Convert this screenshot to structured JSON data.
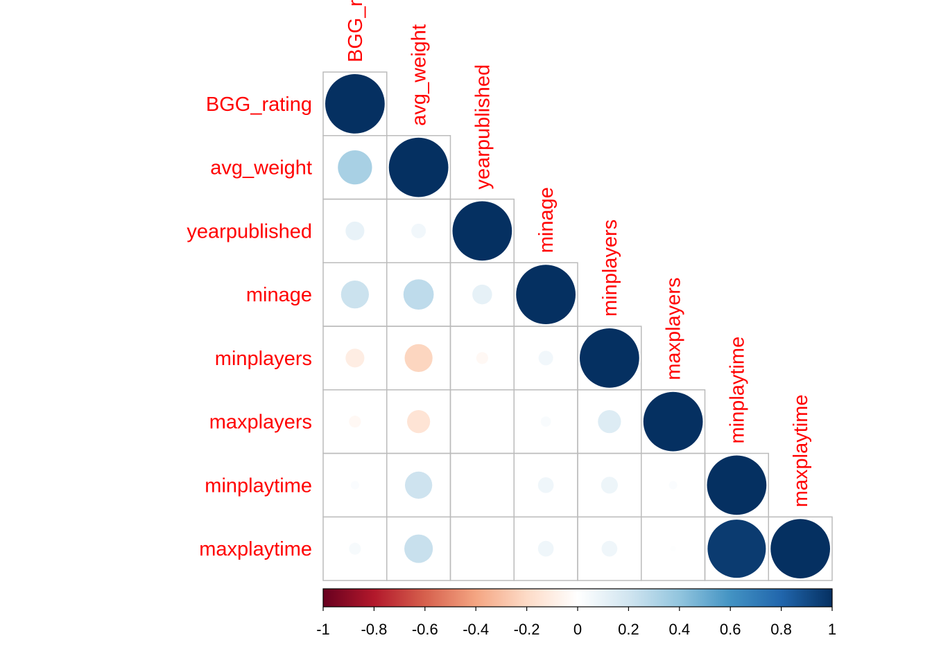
{
  "chart_data": {
    "type": "heatmap",
    "style": "corrplot-circle-lower",
    "variables": [
      "BGG_rating",
      "avg_weight",
      "yearpublished",
      "minage",
      "minplayers",
      "maxplayers",
      "minplaytime",
      "maxplaytime"
    ],
    "correlations": [
      [
        1.0,
        null,
        null,
        null,
        null,
        null,
        null,
        null
      ],
      [
        0.33,
        1.0,
        null,
        null,
        null,
        null,
        null,
        null
      ],
      [
        0.1,
        0.06,
        1.0,
        null,
        null,
        null,
        null,
        null
      ],
      [
        0.22,
        0.26,
        0.11,
        1.0,
        null,
        null,
        null,
        null
      ],
      [
        -0.1,
        -0.22,
        -0.04,
        0.06,
        1.0,
        null,
        null,
        null
      ],
      [
        -0.04,
        -0.15,
        0.0,
        0.03,
        0.15,
        1.0,
        null,
        null
      ],
      [
        0.02,
        0.21,
        0.0,
        0.07,
        0.08,
        0.02,
        1.0,
        null
      ],
      [
        0.04,
        0.23,
        0.0,
        0.07,
        0.07,
        0.01,
        0.96,
        1.0
      ]
    ],
    "colorbar": {
      "ticks": [
        "-1",
        "-0.8",
        "-0.6",
        "-0.4",
        "-0.2",
        "0",
        "0.2",
        "0.4",
        "0.6",
        "0.8",
        "1"
      ],
      "range": [
        -1,
        1
      ]
    },
    "colors": {
      "label": "#ff0000",
      "grid": "#bbbbbb",
      "scale": [
        "#67001f",
        "#b2182b",
        "#d6604d",
        "#f4a582",
        "#fddbc7",
        "#ffffff",
        "#d1e5f0",
        "#92c5de",
        "#4393c3",
        "#2166ac",
        "#053061"
      ]
    }
  }
}
